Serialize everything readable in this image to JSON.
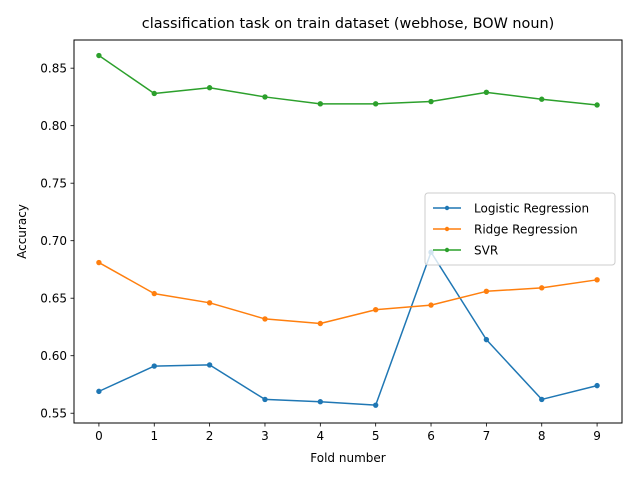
{
  "chart_data": {
    "type": "line",
    "title": "classification task on train dataset (webhose, BOW noun)",
    "xlabel": "Fold number",
    "ylabel": "Accuracy",
    "x": [
      0,
      1,
      2,
      3,
      4,
      5,
      6,
      7,
      8,
      9
    ],
    "xlim": [
      -0.45,
      9.45
    ],
    "ylim": [
      0.5415,
      0.8745
    ],
    "xticks": [
      0,
      1,
      2,
      3,
      4,
      5,
      6,
      7,
      8,
      9
    ],
    "yticks": [
      0.55,
      0.6,
      0.65,
      0.7,
      0.75,
      0.8,
      0.85
    ],
    "ytick_labels": [
      "0.55",
      "0.60",
      "0.65",
      "0.70",
      "0.75",
      "0.80",
      "0.85"
    ],
    "grid": false,
    "legend_position": "center-right",
    "series": [
      {
        "name": "Logistic Regression",
        "color": "#1f77b4",
        "values": [
          0.569,
          0.591,
          0.592,
          0.562,
          0.56,
          0.557,
          0.69,
          0.614,
          0.562,
          0.574
        ]
      },
      {
        "name": "Ridge Regression",
        "color": "#ff7f0e",
        "values": [
          0.681,
          0.654,
          0.646,
          0.632,
          0.628,
          0.64,
          0.644,
          0.656,
          0.659,
          0.666
        ]
      },
      {
        "name": "SVR",
        "color": "#2ca02c",
        "values": [
          0.861,
          0.828,
          0.833,
          0.825,
          0.819,
          0.819,
          0.821,
          0.829,
          0.823,
          0.818
        ]
      }
    ]
  }
}
